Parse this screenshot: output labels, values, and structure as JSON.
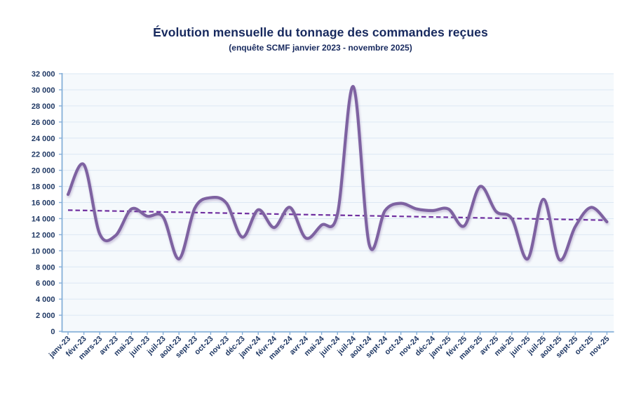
{
  "chart": {
    "title": "Évolution mensuelle du tonnage des commandes reçues",
    "subtitle": "(enquête SCMF janvier 2023 - novembre 2025)"
  },
  "chart_data": {
    "type": "line",
    "title": "Évolution mensuelle du tonnage des commandes reçues",
    "subtitle": "(enquête SCMF janvier 2023 - novembre 2025)",
    "categories": [
      "janv-23",
      "févr-23",
      "mars-23",
      "avr-23",
      "mai-23",
      "juin-23",
      "juil-23",
      "août-23",
      "sept-23",
      "oct-23",
      "nov-23",
      "déc-23",
      "janv-24",
      "févr-24",
      "mars-24",
      "avr-24",
      "mai-24",
      "juin-24",
      "juil-24",
      "août-24",
      "sept-24",
      "oct-24",
      "nov-24",
      "déc-24",
      "janv-25",
      "févr-25",
      "mars-25",
      "avr-25",
      "mai-25",
      "juin-25",
      "juil-25",
      "août-25",
      "sept-25",
      "oct-25",
      "nov-25"
    ],
    "values": [
      17000,
      20700,
      12100,
      11900,
      15200,
      14300,
      14200,
      9000,
      15300,
      16600,
      15900,
      11700,
      15100,
      12900,
      15400,
      11600,
      13200,
      14600,
      30400,
      10800,
      15000,
      15900,
      15200,
      15000,
      15200,
      13100,
      18000,
      14900,
      14000,
      9000,
      16400,
      8900,
      13000,
      15400,
      13600
    ],
    "trendline": {
      "type": "linear",
      "start_value": 15050,
      "end_value": 13800
    },
    "ylim": [
      0,
      32000
    ],
    "ytick_step": 2000,
    "xlabel": "",
    "ylabel": "",
    "grid": true,
    "legend": "none",
    "smooth": true,
    "colors": {
      "series_line": "#7E62A1",
      "trend_line": "#7030A0",
      "axis_line": "#85AFD8",
      "gridline": "#DCE8F4",
      "plot_background": "#F5F9FC",
      "tick_label": "#1F3864",
      "title_text": "#17295E"
    }
  }
}
